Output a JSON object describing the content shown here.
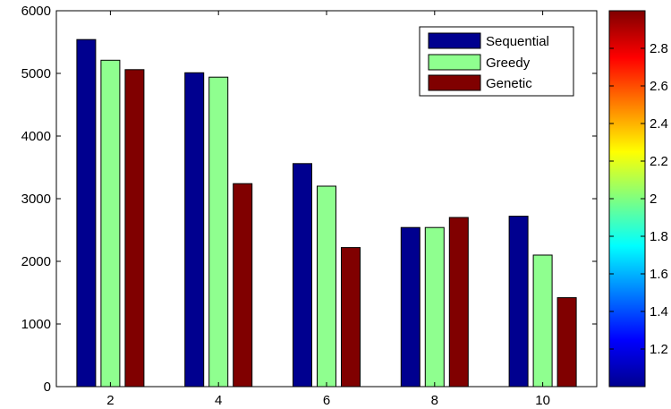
{
  "chart_data": {
    "type": "bar",
    "categories": [
      "2",
      "4",
      "6",
      "8",
      "10"
    ],
    "series": [
      {
        "name": "Sequential",
        "color": "#00008f",
        "values": [
          5540,
          5010,
          3560,
          2540,
          2720
        ]
      },
      {
        "name": "Greedy",
        "color": "#8fff8f",
        "values": [
          5210,
          4940,
          3200,
          2540,
          2100
        ]
      },
      {
        "name": "Genetic",
        "color": "#800000",
        "values": [
          5060,
          3240,
          2220,
          2700,
          1420
        ]
      }
    ],
    "title": "",
    "xlabel": "",
    "ylabel": "",
    "ylim": [
      0,
      6000
    ],
    "yticks": [
      "0",
      "1000",
      "2000",
      "3000",
      "4000",
      "5000",
      "6000"
    ],
    "legend_position": "top-right",
    "grid": false,
    "colorbar": {
      "range": [
        1,
        3
      ],
      "ticks": [
        "1.2",
        "1.4",
        "1.6",
        "1.8",
        "2",
        "2.2",
        "2.4",
        "2.6",
        "2.8"
      ],
      "colormap": "jet"
    }
  }
}
